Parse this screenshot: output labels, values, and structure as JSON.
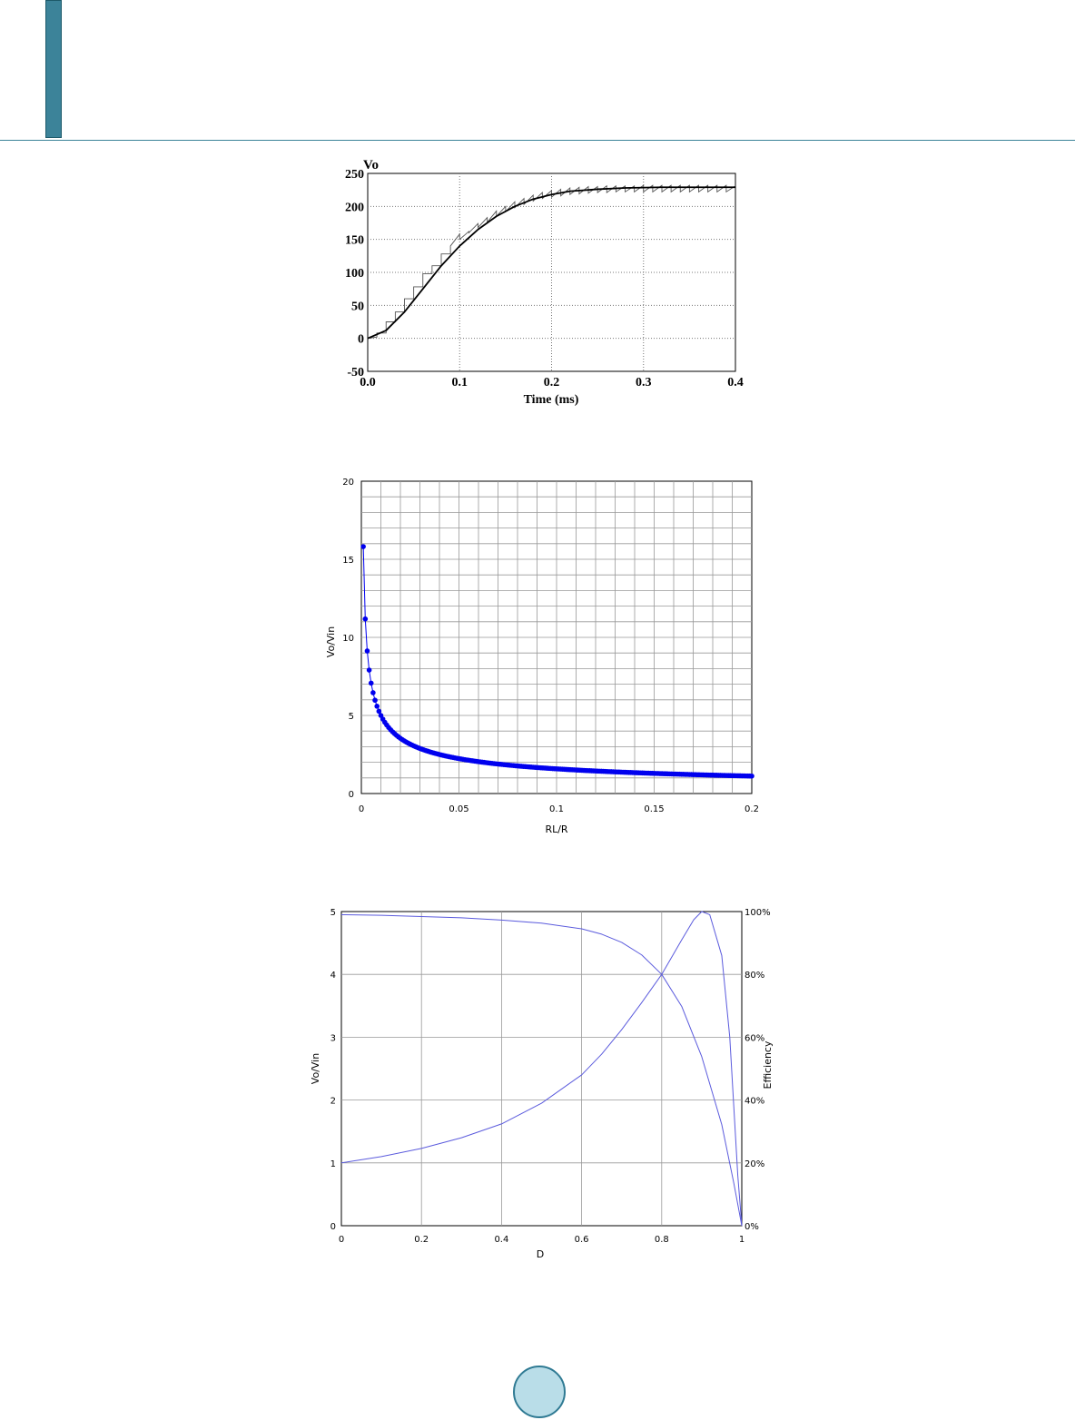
{
  "colors": {
    "accent": "#3c8399",
    "page_badge": "#b9dde8",
    "blue_series": "#0000ee",
    "line_series": "#5b5bdd"
  },
  "chart_data": [
    {
      "id": "vo-transient",
      "type": "line",
      "title": "",
      "xlabel": "Time (ms)",
      "ylabel": "Vo",
      "xlim": [
        0,
        0.4
      ],
      "ylim": [
        -50,
        250
      ],
      "xticks": [
        "0.0",
        "0.1",
        "0.2",
        "0.3",
        "0.4"
      ],
      "yticks": [
        "250",
        "200",
        "150",
        "100",
        "50",
        "0",
        "-50"
      ],
      "grid": true,
      "series": [
        {
          "style": "average",
          "x": [
            0,
            0.02,
            0.04,
            0.06,
            0.08,
            0.1,
            0.12,
            0.14,
            0.16,
            0.18,
            0.2,
            0.22,
            0.25,
            0.28,
            0.32,
            0.36,
            0.4
          ],
          "y": [
            0,
            12,
            40,
            75,
            110,
            140,
            165,
            185,
            200,
            211,
            218,
            223,
            226,
            228,
            229,
            229,
            229
          ]
        },
        {
          "style": "switching ripple",
          "x": [
            0,
            0.01,
            0.01,
            0.02,
            0.02,
            0.03,
            0.03,
            0.04,
            0.04,
            0.05,
            0.05,
            0.06,
            0.06,
            0.07,
            0.07,
            0.08,
            0.08,
            0.09,
            0.09,
            0.1,
            0.1,
            0.11,
            0.11,
            0.12,
            0.12,
            0.13,
            0.13,
            0.14,
            0.14,
            0.15,
            0.15,
            0.16,
            0.16,
            0.17,
            0.17,
            0.18,
            0.18,
            0.19,
            0.19,
            0.2,
            0.2,
            0.21,
            0.21,
            0.22,
            0.22,
            0.23,
            0.23,
            0.24,
            0.24,
            0.25,
            0.25,
            0.26,
            0.26,
            0.27,
            0.27,
            0.28,
            0.28,
            0.29,
            0.29,
            0.3,
            0.3,
            0.31,
            0.31,
            0.32,
            0.32,
            0.33,
            0.33,
            0.34,
            0.34,
            0.35,
            0.35,
            0.36,
            0.36,
            0.37,
            0.37,
            0.38,
            0.38,
            0.39,
            0.39,
            0.4
          ],
          "y": [
            0,
            2,
            8,
            8,
            25,
            25,
            40,
            40,
            60,
            60,
            78,
            78,
            98,
            98,
            110,
            110,
            128,
            128,
            140,
            158,
            150,
            162,
            160,
            174,
            168,
            183,
            176,
            193,
            185,
            200,
            192,
            207,
            198,
            212,
            203,
            217,
            208,
            221,
            212,
            224,
            214,
            226,
            216,
            228,
            218,
            229,
            219,
            230,
            220,
            230,
            221,
            231,
            221,
            231,
            222,
            231,
            222,
            231,
            222,
            232,
            222,
            232,
            222,
            232,
            222,
            232,
            222,
            232,
            222,
            232,
            222,
            232,
            222,
            232,
            222,
            232,
            222,
            232,
            222,
            231
          ]
        }
      ]
    },
    {
      "id": "gain-vs-rl",
      "type": "scatter",
      "title": "",
      "xlabel": "RL/R",
      "ylabel": "Vo/Vin",
      "xlim": [
        0,
        0.2
      ],
      "ylim": [
        0,
        20
      ],
      "xticks": [
        "0",
        "0.05",
        "0.1",
        "0.15",
        "0.2"
      ],
      "yticks": [
        "20",
        "15",
        "10",
        "5",
        "0"
      ],
      "grid": true,
      "series": [
        {
          "rule": "y = 1 / (2*sqrt(x))",
          "x_from": 0.001,
          "x_to": 0.2,
          "x_step": 0.001
        }
      ]
    },
    {
      "id": "gain-efficiency-vs-d",
      "type": "line",
      "title": "",
      "xlabel": "D",
      "ylabel": "Vo/Vin",
      "y2label": "Efficiency",
      "xlim": [
        0,
        1
      ],
      "ylim": [
        0,
        5
      ],
      "y2lim": [
        0,
        100
      ],
      "xticks": [
        "0",
        "0.2",
        "0.4",
        "0.6",
        "0.8",
        "1"
      ],
      "yticks": [
        "5",
        "4",
        "3",
        "2",
        "1",
        "0"
      ],
      "y2ticks": [
        "100%",
        "80%",
        "60%",
        "40%",
        "20%",
        "0%"
      ],
      "grid": true,
      "series": [
        {
          "axis": "left",
          "x": [
            0,
            0.1,
            0.2,
            0.3,
            0.4,
            0.5,
            0.6,
            0.65,
            0.7,
            0.75,
            0.8,
            0.85,
            0.88,
            0.9,
            0.92,
            0.95,
            0.97,
            0.99,
            1.0
          ],
          "y": [
            1,
            1.1,
            1.23,
            1.4,
            1.62,
            1.95,
            2.4,
            2.73,
            3.12,
            3.55,
            4.0,
            4.55,
            4.87,
            5.0,
            4.95,
            4.3,
            3.0,
            0.8,
            0
          ]
        },
        {
          "axis": "right",
          "x": [
            0,
            0.1,
            0.2,
            0.3,
            0.4,
            0.5,
            0.6,
            0.65,
            0.7,
            0.75,
            0.8,
            0.85,
            0.9,
            0.95,
            0.98,
            1.0
          ],
          "y": [
            99,
            98.8,
            98.4,
            98.0,
            97.3,
            96.3,
            94.5,
            92.8,
            90.2,
            86.2,
            80.0,
            69.8,
            53.8,
            32.2,
            13.6,
            0
          ]
        }
      ]
    }
  ]
}
